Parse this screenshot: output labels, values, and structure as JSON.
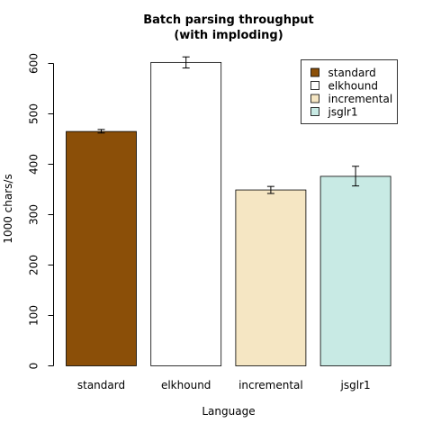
{
  "chart_data": {
    "type": "bar",
    "title": [
      "Batch parsing throughput",
      "(with imploding)"
    ],
    "xlabel": "Language",
    "ylabel": "1000 chars/s",
    "categories": [
      "standard",
      "elkhound",
      "incremental",
      "jsglr1"
    ],
    "values": [
      465,
      602,
      349,
      376
    ],
    "errors": [
      [
        462,
        469
      ],
      [
        591,
        613
      ],
      [
        342,
        356
      ],
      [
        357,
        396
      ]
    ],
    "colors": [
      "#8b4f08",
      "#ffffff",
      "#f5e6c3",
      "#c8eae4"
    ],
    "ylim": [
      0,
      600
    ],
    "yticks": [
      0,
      100,
      200,
      300,
      400,
      500,
      600
    ],
    "legend": {
      "position": "top-right",
      "entries": [
        {
          "label": "standard",
          "color": "#8b4f08"
        },
        {
          "label": "elkhound",
          "color": "#ffffff"
        },
        {
          "label": "incremental",
          "color": "#f5e6c3"
        },
        {
          "label": "jsglr1",
          "color": "#c8eae4"
        }
      ]
    },
    "grid": false
  }
}
